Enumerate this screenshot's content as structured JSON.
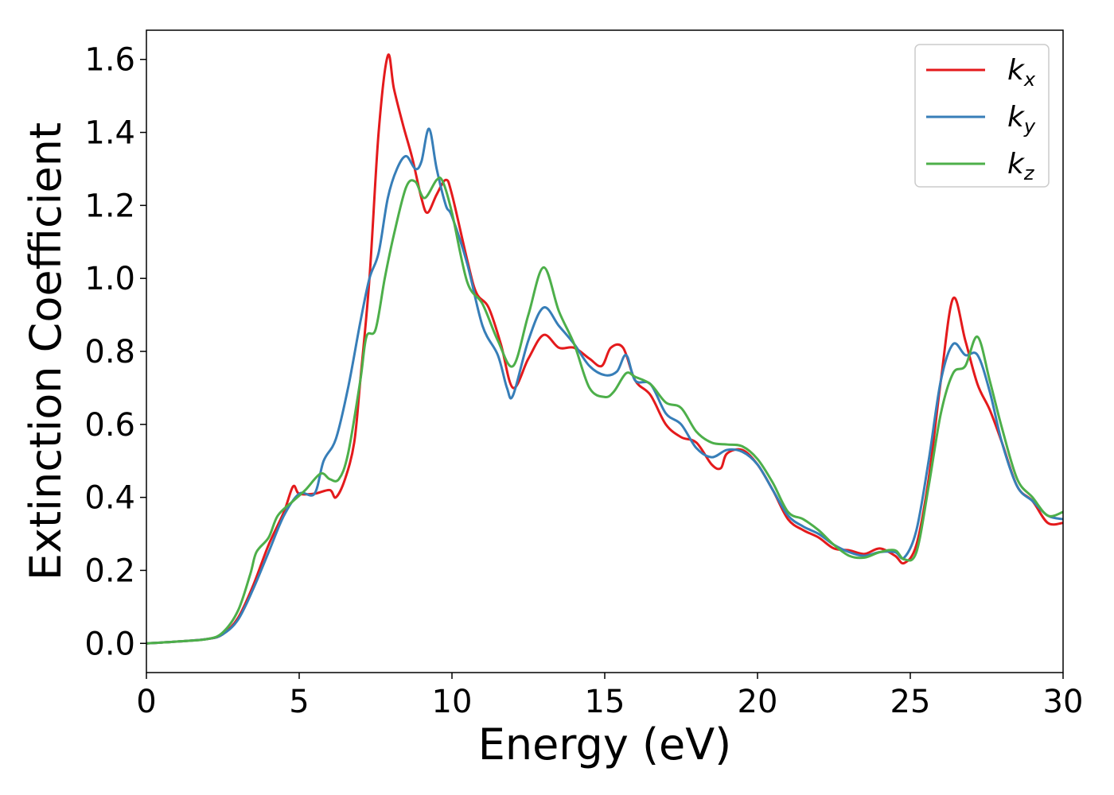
{
  "chart_data": {
    "type": "line",
    "title": "",
    "xlabel": "Energy (eV)",
    "ylabel": "Extinction Coefficient",
    "xlim": [
      0,
      30
    ],
    "ylim": [
      -0.08,
      1.68
    ],
    "xticks": [
      0,
      5,
      10,
      15,
      20,
      25,
      30
    ],
    "yticks": [
      0.0,
      0.2,
      0.4,
      0.6,
      0.8,
      1.0,
      1.2,
      1.4,
      1.6
    ],
    "xtick_labels": [
      "0",
      "5",
      "10",
      "15",
      "20",
      "25",
      "30"
    ],
    "ytick_labels": [
      "0.0",
      "0.2",
      "0.4",
      "0.6",
      "0.8",
      "1.0",
      "1.2",
      "1.4",
      "1.6"
    ],
    "grid": false,
    "legend_position": "top-right",
    "series": [
      {
        "name": "k",
        "subscript": "x",
        "color": "#e41a1c",
        "points": [
          [
            0,
            0
          ],
          [
            1,
            0.005
          ],
          [
            2,
            0.012
          ],
          [
            2.5,
            0.025
          ],
          [
            3,
            0.07
          ],
          [
            3.5,
            0.16
          ],
          [
            4,
            0.27
          ],
          [
            4.5,
            0.36
          ],
          [
            4.8,
            0.43
          ],
          [
            5,
            0.41
          ],
          [
            5.5,
            0.41
          ],
          [
            6,
            0.42
          ],
          [
            6.2,
            0.4
          ],
          [
            6.5,
            0.45
          ],
          [
            6.8,
            0.55
          ],
          [
            7,
            0.72
          ],
          [
            7.3,
            1.0
          ],
          [
            7.6,
            1.4
          ],
          [
            7.9,
            1.61
          ],
          [
            8.1,
            1.52
          ],
          [
            8.4,
            1.42
          ],
          [
            8.7,
            1.33
          ],
          [
            9,
            1.22
          ],
          [
            9.2,
            1.18
          ],
          [
            9.5,
            1.23
          ],
          [
            9.8,
            1.27
          ],
          [
            10,
            1.23
          ],
          [
            10.5,
            1.05
          ],
          [
            10.8,
            0.96
          ],
          [
            11.2,
            0.92
          ],
          [
            11.6,
            0.82
          ],
          [
            12,
            0.7
          ],
          [
            12.5,
            0.78
          ],
          [
            13,
            0.845
          ],
          [
            13.5,
            0.81
          ],
          [
            14,
            0.81
          ],
          [
            14.5,
            0.78
          ],
          [
            14.9,
            0.76
          ],
          [
            15.2,
            0.81
          ],
          [
            15.6,
            0.81
          ],
          [
            16,
            0.72
          ],
          [
            16.5,
            0.68
          ],
          [
            17,
            0.6
          ],
          [
            17.5,
            0.565
          ],
          [
            18,
            0.55
          ],
          [
            18.5,
            0.49
          ],
          [
            18.8,
            0.48
          ],
          [
            19,
            0.52
          ],
          [
            19.5,
            0.53
          ],
          [
            20,
            0.49
          ],
          [
            20.5,
            0.42
          ],
          [
            21,
            0.34
          ],
          [
            21.5,
            0.31
          ],
          [
            22,
            0.29
          ],
          [
            22.5,
            0.26
          ],
          [
            23,
            0.255
          ],
          [
            23.5,
            0.245
          ],
          [
            24,
            0.26
          ],
          [
            24.5,
            0.24
          ],
          [
            24.8,
            0.22
          ],
          [
            25.2,
            0.27
          ],
          [
            25.6,
            0.45
          ],
          [
            26,
            0.72
          ],
          [
            26.4,
            0.945
          ],
          [
            26.8,
            0.83
          ],
          [
            27.2,
            0.71
          ],
          [
            27.6,
            0.64
          ],
          [
            28,
            0.55
          ],
          [
            28.5,
            0.43
          ],
          [
            29,
            0.39
          ],
          [
            29.5,
            0.33
          ],
          [
            30,
            0.33
          ]
        ]
      },
      {
        "name": "k",
        "subscript": "y",
        "color": "#377eb8",
        "points": [
          [
            0,
            0
          ],
          [
            1,
            0.005
          ],
          [
            2,
            0.012
          ],
          [
            2.5,
            0.025
          ],
          [
            3,
            0.065
          ],
          [
            3.5,
            0.15
          ],
          [
            4,
            0.25
          ],
          [
            4.5,
            0.35
          ],
          [
            5,
            0.41
          ],
          [
            5.5,
            0.41
          ],
          [
            5.8,
            0.5
          ],
          [
            6.2,
            0.56
          ],
          [
            6.6,
            0.7
          ],
          [
            7,
            0.88
          ],
          [
            7.3,
            1.0
          ],
          [
            7.6,
            1.07
          ],
          [
            7.9,
            1.22
          ],
          [
            8.2,
            1.3
          ],
          [
            8.5,
            1.335
          ],
          [
            8.8,
            1.3
          ],
          [
            9,
            1.32
          ],
          [
            9.25,
            1.41
          ],
          [
            9.5,
            1.3
          ],
          [
            9.8,
            1.2
          ],
          [
            10,
            1.17
          ],
          [
            10.5,
            1.04
          ],
          [
            11,
            0.87
          ],
          [
            11.5,
            0.79
          ],
          [
            11.8,
            0.7
          ],
          [
            12,
            0.68
          ],
          [
            12.5,
            0.83
          ],
          [
            13,
            0.92
          ],
          [
            13.5,
            0.87
          ],
          [
            14,
            0.82
          ],
          [
            14.5,
            0.76
          ],
          [
            15,
            0.735
          ],
          [
            15.4,
            0.745
          ],
          [
            15.7,
            0.79
          ],
          [
            16,
            0.72
          ],
          [
            16.5,
            0.71
          ],
          [
            17,
            0.63
          ],
          [
            17.5,
            0.6
          ],
          [
            18,
            0.535
          ],
          [
            18.5,
            0.51
          ],
          [
            19,
            0.53
          ],
          [
            19.5,
            0.525
          ],
          [
            20,
            0.49
          ],
          [
            20.5,
            0.42
          ],
          [
            21,
            0.35
          ],
          [
            21.5,
            0.32
          ],
          [
            22,
            0.3
          ],
          [
            22.5,
            0.27
          ],
          [
            23,
            0.25
          ],
          [
            23.5,
            0.24
          ],
          [
            24,
            0.25
          ],
          [
            24.5,
            0.25
          ],
          [
            24.8,
            0.235
          ],
          [
            25.2,
            0.31
          ],
          [
            25.6,
            0.5
          ],
          [
            26,
            0.72
          ],
          [
            26.4,
            0.82
          ],
          [
            26.8,
            0.79
          ],
          [
            27.2,
            0.79
          ],
          [
            27.6,
            0.69
          ],
          [
            28,
            0.55
          ],
          [
            28.5,
            0.43
          ],
          [
            29,
            0.39
          ],
          [
            29.5,
            0.35
          ],
          [
            30,
            0.34
          ]
        ]
      },
      {
        "name": "k",
        "subscript": "z",
        "color": "#4daf4a",
        "points": [
          [
            0,
            0
          ],
          [
            1,
            0.005
          ],
          [
            2,
            0.012
          ],
          [
            2.5,
            0.03
          ],
          [
            3,
            0.09
          ],
          [
            3.4,
            0.19
          ],
          [
            3.6,
            0.25
          ],
          [
            4,
            0.29
          ],
          [
            4.3,
            0.35
          ],
          [
            4.8,
            0.39
          ],
          [
            5.2,
            0.42
          ],
          [
            5.7,
            0.465
          ],
          [
            6,
            0.45
          ],
          [
            6.3,
            0.45
          ],
          [
            6.6,
            0.52
          ],
          [
            7,
            0.72
          ],
          [
            7.2,
            0.84
          ],
          [
            7.5,
            0.86
          ],
          [
            7.8,
            1.0
          ],
          [
            8.1,
            1.12
          ],
          [
            8.5,
            1.25
          ],
          [
            8.8,
            1.265
          ],
          [
            9.1,
            1.22
          ],
          [
            9.5,
            1.27
          ],
          [
            9.7,
            1.265
          ],
          [
            10,
            1.18
          ],
          [
            10.5,
            0.99
          ],
          [
            11,
            0.93
          ],
          [
            11.5,
            0.83
          ],
          [
            12,
            0.76
          ],
          [
            12.5,
            0.9
          ],
          [
            13,
            1.03
          ],
          [
            13.5,
            0.91
          ],
          [
            14,
            0.82
          ],
          [
            14.5,
            0.7
          ],
          [
            15,
            0.675
          ],
          [
            15.3,
            0.69
          ],
          [
            15.7,
            0.74
          ],
          [
            16,
            0.73
          ],
          [
            16.5,
            0.71
          ],
          [
            17,
            0.66
          ],
          [
            17.5,
            0.645
          ],
          [
            18,
            0.58
          ],
          [
            18.5,
            0.55
          ],
          [
            19,
            0.545
          ],
          [
            19.5,
            0.54
          ],
          [
            20,
            0.505
          ],
          [
            20.5,
            0.44
          ],
          [
            21,
            0.36
          ],
          [
            21.5,
            0.34
          ],
          [
            22,
            0.31
          ],
          [
            22.5,
            0.27
          ],
          [
            23,
            0.24
          ],
          [
            23.5,
            0.235
          ],
          [
            24,
            0.25
          ],
          [
            24.5,
            0.255
          ],
          [
            24.8,
            0.23
          ],
          [
            25.2,
            0.25
          ],
          [
            25.6,
            0.43
          ],
          [
            26,
            0.63
          ],
          [
            26.4,
            0.74
          ],
          [
            26.8,
            0.76
          ],
          [
            27.2,
            0.84
          ],
          [
            27.6,
            0.72
          ],
          [
            28,
            0.59
          ],
          [
            28.5,
            0.45
          ],
          [
            29,
            0.4
          ],
          [
            29.5,
            0.35
          ],
          [
            30,
            0.36
          ]
        ]
      }
    ]
  }
}
